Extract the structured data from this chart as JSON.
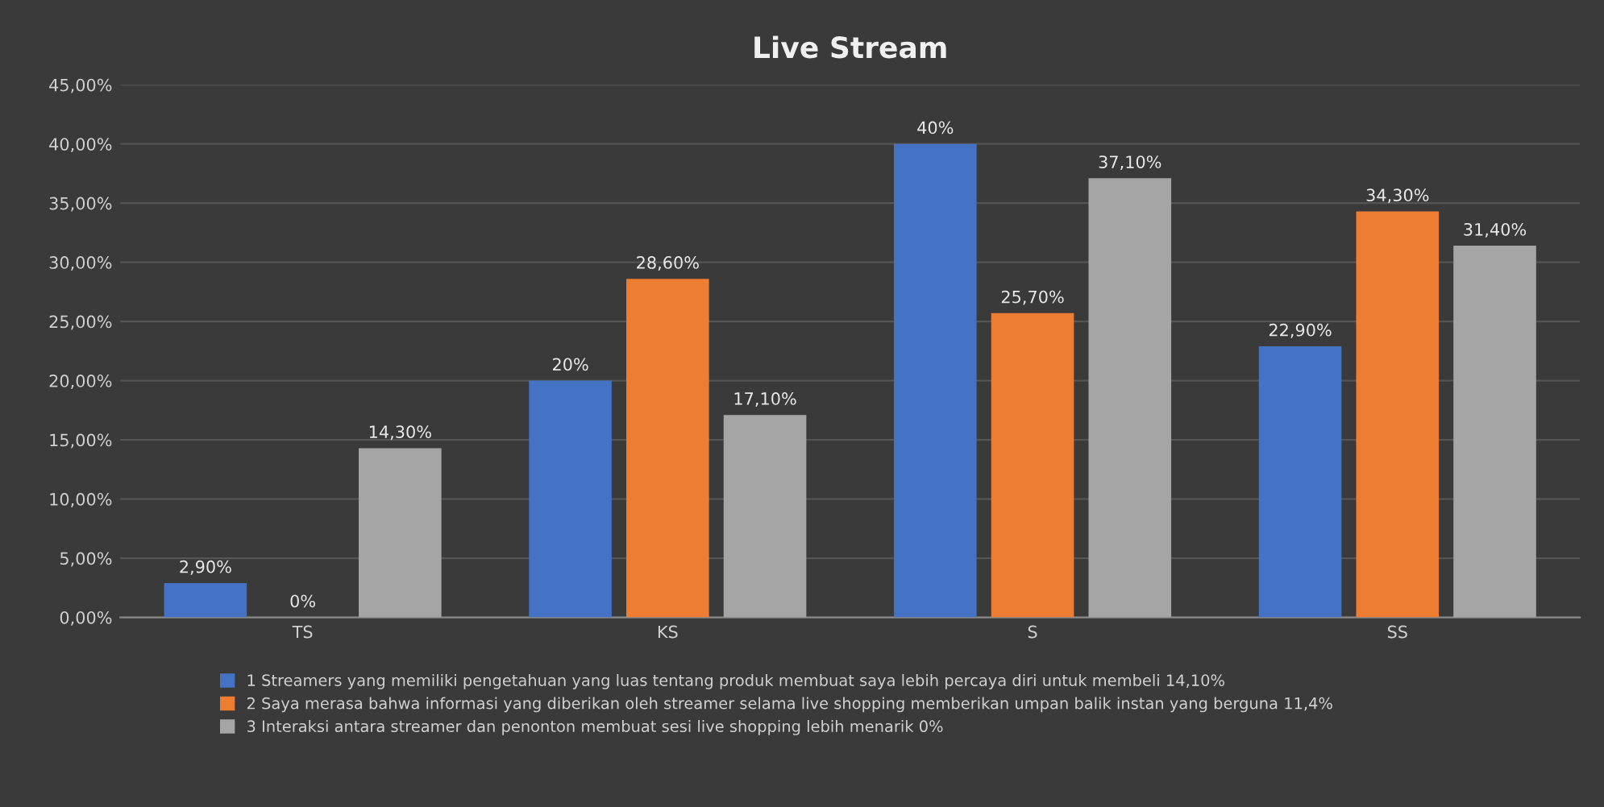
{
  "chart_data": {
    "type": "bar",
    "title": "Live Stream",
    "categories": [
      "TS",
      "KS",
      "S",
      "SS"
    ],
    "series": [
      {
        "name": "1 Streamers yang memiliki pengetahuan yang luas tentang produk membuat saya lebih percaya diri untuk membeli 14,10%",
        "color": "#4472c4",
        "values": [
          2.9,
          20,
          40,
          22.9
        ],
        "value_labels": [
          "2,90%",
          "20%",
          "40%",
          "22,90%"
        ]
      },
      {
        "name": "2 Saya merasa bahwa informasi yang diberikan oleh streamer selama live shopping memberikan umpan balik instan yang berguna 11,4%",
        "color": "#ed7d31",
        "values": [
          0,
          28.6,
          25.7,
          34.3
        ],
        "value_labels": [
          "0%",
          "28,60%",
          "25,70%",
          "34,30%"
        ]
      },
      {
        "name": "3 Interaksi antara streamer dan penonton membuat sesi live shopping lebih menarik 0%",
        "color": "#a5a5a5",
        "values": [
          14.3,
          17.1,
          37.1,
          31.4
        ],
        "value_labels": [
          "14,30%",
          "17,10%",
          "37,10%",
          "31,40%"
        ]
      }
    ],
    "ylim": [
      0,
      45
    ],
    "yticks": [
      {
        "value": 0,
        "label": "0,00%"
      },
      {
        "value": 5,
        "label": "5,00%"
      },
      {
        "value": 10,
        "label": "10,00%"
      },
      {
        "value": 15,
        "label": "15,00%"
      },
      {
        "value": 20,
        "label": "20,00%"
      },
      {
        "value": 25,
        "label": "25,00%"
      },
      {
        "value": 30,
        "label": "30,00%"
      },
      {
        "value": 35,
        "label": "35,00%"
      },
      {
        "value": 40,
        "label": "40,00%"
      },
      {
        "value": 45,
        "label": "45,00%"
      }
    ],
    "grid": "y",
    "legend": "bottom"
  }
}
